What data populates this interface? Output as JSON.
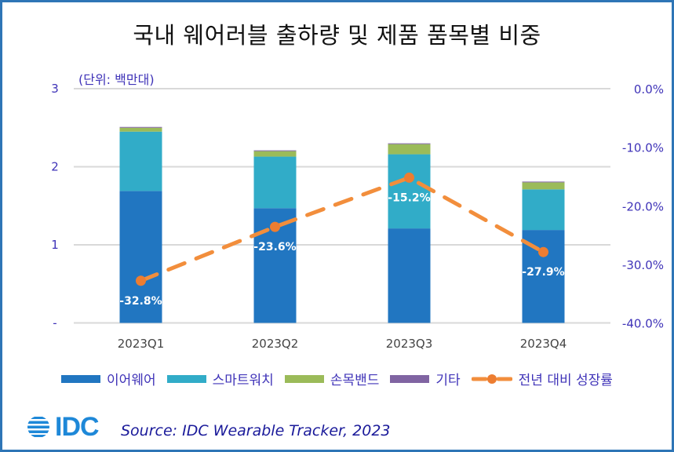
{
  "chart_data": {
    "type": "bar",
    "stacked": true,
    "title": "국내 웨어러블 출하량 및 제품 품목별 비중",
    "unit_note": "(단위: 백만대)",
    "categories": [
      "2023Q1",
      "2023Q2",
      "2023Q3",
      "2023Q4"
    ],
    "series": [
      {
        "name": "이어웨어",
        "type": "bar",
        "axis": "left",
        "color": "#2176C1",
        "values": [
          1.69,
          1.47,
          1.21,
          1.19
        ]
      },
      {
        "name": "스마트워치",
        "type": "bar",
        "axis": "left",
        "color": "#31ACC8",
        "values": [
          0.76,
          0.66,
          0.95,
          0.52
        ]
      },
      {
        "name": "손목밴드",
        "type": "bar",
        "axis": "left",
        "color": "#9BBB59",
        "values": [
          0.05,
          0.07,
          0.13,
          0.09
        ]
      },
      {
        "name": "기타",
        "type": "bar",
        "axis": "left",
        "color": "#8064A2",
        "values": [
          0.01,
          0.01,
          0.01,
          0.01
        ]
      },
      {
        "name": "전년 대비 성장률",
        "type": "line",
        "axis": "right",
        "color": "#F28E3C",
        "values": [
          -32.8,
          -23.6,
          -15.2,
          -27.9
        ],
        "labels": [
          "-32.8%",
          "-23.6%",
          "-15.2%",
          "-27.9%"
        ]
      }
    ],
    "y_left": {
      "range": [
        0,
        3
      ],
      "ticks": [
        0,
        1,
        2,
        3
      ],
      "tick_labels": [
        "-",
        "1",
        "2",
        "3"
      ]
    },
    "y_right": {
      "range": [
        -40,
        0
      ],
      "ticks": [
        0,
        -10,
        -20,
        -30,
        -40
      ],
      "tick_labels": [
        "0.0%",
        "-10.0%",
        "-20.0%",
        "-30.0%",
        "-40.0%"
      ]
    },
    "grid": true,
    "legend_position": "bottom"
  },
  "source": "Source: IDC Wearable Tracker, 2023",
  "logo": "IDC"
}
